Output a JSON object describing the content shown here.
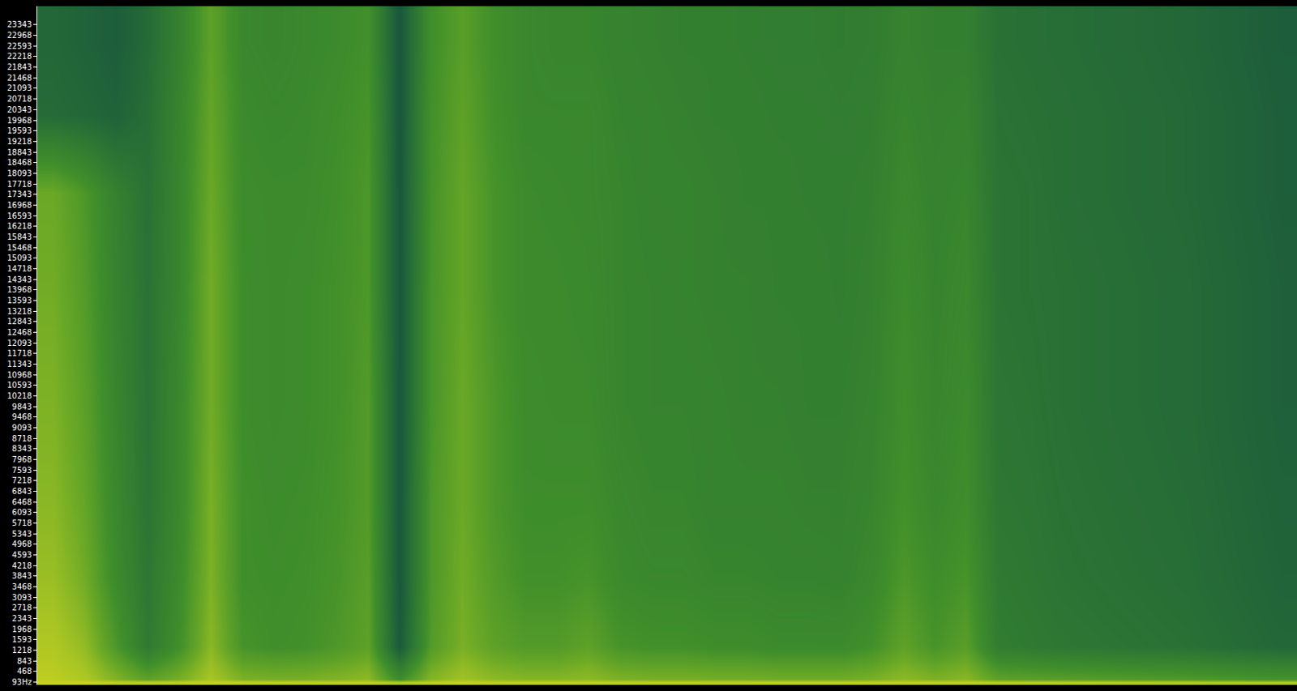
{
  "chart_data": {
    "type": "heatmap",
    "tick_labels": "y",
    "ylim": [
      0,
      24000
    ],
    "yticks": [
      {
        "value": 93,
        "label": "93Hz"
      },
      468,
      843,
      1218,
      1593,
      1968,
      2343,
      2718,
      3093,
      3468,
      3843,
      4218,
      4593,
      4968,
      5343,
      5718,
      6093,
      6468,
      6843,
      7218,
      7593,
      7968,
      8343,
      8718,
      9093,
      9468,
      9843,
      10218,
      10593,
      10968,
      11343,
      11718,
      12093,
      12468,
      12843,
      13218,
      13593,
      13968,
      14343,
      14718,
      15093,
      15468,
      15843,
      16218,
      16593,
      16968,
      17343,
      17718,
      18093,
      18468,
      18843,
      19218,
      19593,
      19968,
      20343,
      20718,
      21093,
      21468,
      21843,
      22218,
      22593,
      22968,
      23343
    ],
    "y_edges": [
      0,
      200,
      2500,
      5000,
      8000,
      12000,
      16000,
      18800,
      21500,
      24000
    ],
    "zlim": [
      0,
      100
    ],
    "z_by_time": [
      [
        95,
        88,
        82,
        78,
        75,
        72,
        70,
        30,
        28
      ],
      [
        95,
        80,
        72,
        68,
        65,
        62,
        60,
        28,
        25
      ],
      [
        92,
        60,
        52,
        50,
        48,
        46,
        45,
        25,
        22
      ],
      [
        92,
        40,
        38,
        36,
        35,
        35,
        34,
        32,
        30
      ],
      [
        92,
        55,
        52,
        50,
        50,
        48,
        48,
        47,
        45
      ],
      [
        94,
        78,
        75,
        74,
        72,
        72,
        70,
        68,
        66
      ],
      [
        92,
        58,
        55,
        55,
        54,
        54,
        53,
        52,
        50
      ],
      [
        92,
        55,
        54,
        53,
        52,
        52,
        52,
        50,
        48
      ],
      [
        92,
        56,
        55,
        54,
        53,
        53,
        52,
        51,
        50
      ],
      [
        92,
        60,
        58,
        57,
        56,
        56,
        55,
        54,
        52
      ],
      [
        92,
        66,
        64,
        62,
        62,
        60,
        60,
        58,
        56
      ],
      [
        88,
        20,
        18,
        18,
        18,
        18,
        18,
        18,
        18
      ],
      [
        92,
        62,
        60,
        60,
        58,
        58,
        57,
        56,
        55
      ],
      [
        94,
        74,
        72,
        70,
        70,
        68,
        68,
        66,
        64
      ],
      [
        92,
        66,
        62,
        60,
        60,
        58,
        58,
        56,
        55
      ],
      [
        92,
        62,
        56,
        54,
        53,
        52,
        52,
        50,
        50
      ],
      [
        92,
        62,
        56,
        54,
        52,
        52,
        51,
        50,
        48
      ],
      [
        92,
        66,
        58,
        54,
        52,
        51,
        50,
        50,
        48
      ],
      [
        92,
        58,
        52,
        50,
        48,
        48,
        48,
        47,
        46
      ],
      [
        92,
        56,
        50,
        48,
        47,
        47,
        46,
        46,
        45
      ],
      [
        92,
        56,
        50,
        48,
        47,
        46,
        46,
        45,
        44
      ],
      [
        92,
        54,
        48,
        46,
        46,
        45,
        45,
        44,
        44
      ],
      [
        92,
        54,
        48,
        46,
        45,
        45,
        44,
        44,
        43
      ],
      [
        92,
        52,
        47,
        46,
        45,
        44,
        44,
        43,
        42
      ],
      [
        92,
        52,
        47,
        45,
        44,
        44,
        43,
        43,
        42
      ],
      [
        92,
        52,
        46,
        45,
        44,
        43,
        43,
        42,
        41
      ],
      [
        92,
        56,
        50,
        48,
        46,
        45,
        44,
        43,
        42
      ],
      [
        92,
        66,
        60,
        56,
        54,
        52,
        50,
        48,
        46
      ],
      [
        92,
        58,
        54,
        50,
        48,
        47,
        46,
        45,
        44
      ],
      [
        92,
        64,
        58,
        54,
        52,
        50,
        48,
        46,
        44
      ],
      [
        90,
        42,
        40,
        38,
        37,
        36,
        36,
        35,
        34
      ],
      [
        90,
        40,
        38,
        37,
        36,
        35,
        35,
        34,
        33
      ],
      [
        90,
        38,
        36,
        35,
        34,
        34,
        33,
        33,
        32
      ],
      [
        90,
        37,
        35,
        34,
        33,
        33,
        32,
        32,
        31
      ],
      [
        89,
        36,
        34,
        33,
        32,
        32,
        31,
        31,
        30
      ],
      [
        89,
        35,
        33,
        32,
        31,
        31,
        30,
        30,
        29
      ],
      [
        89,
        34,
        32,
        31,
        30,
        30,
        29,
        29,
        28
      ],
      [
        88,
        32,
        30,
        29,
        28,
        28,
        27,
        27,
        26
      ],
      [
        88,
        30,
        28,
        27,
        26,
        26,
        25,
        25,
        24
      ],
      [
        88,
        28,
        26,
        25,
        24,
        24,
        23,
        23,
        22
      ]
    ]
  }
}
